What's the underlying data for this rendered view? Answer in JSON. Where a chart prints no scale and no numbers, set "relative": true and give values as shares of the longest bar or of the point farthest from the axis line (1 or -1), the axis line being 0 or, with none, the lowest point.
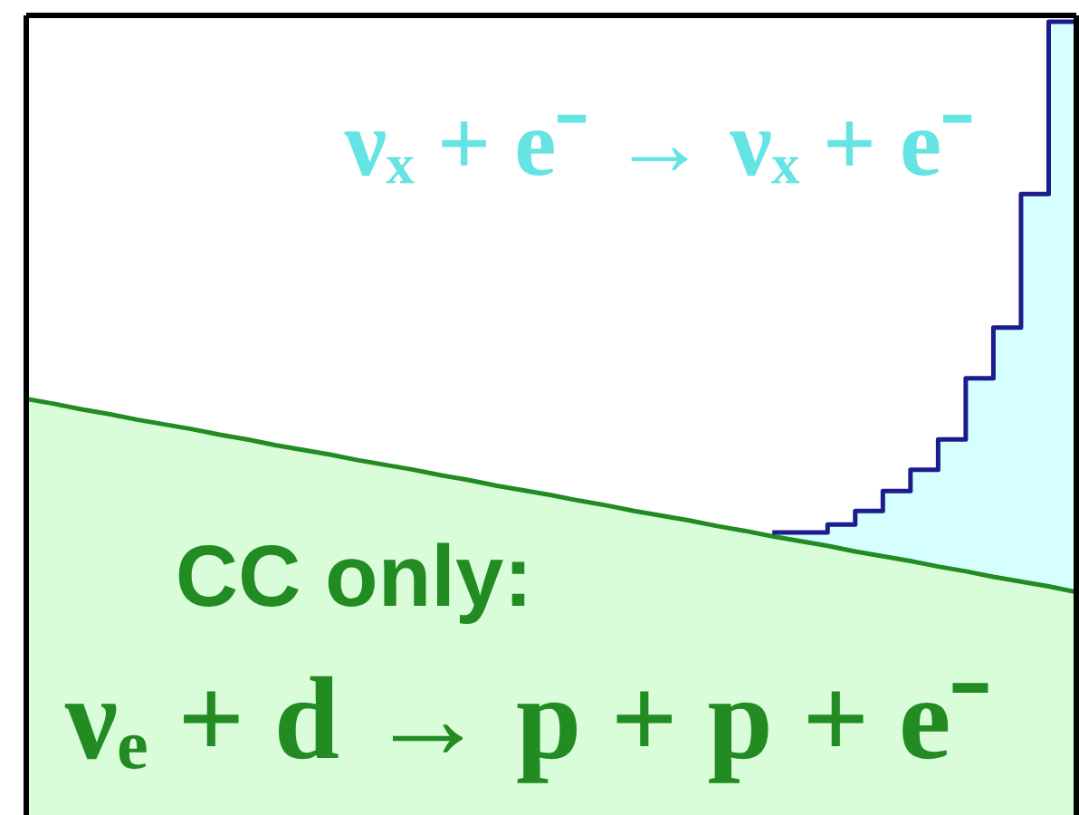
{
  "chart_data": {
    "type": "area",
    "relative": true,
    "annotations": [
      "νₓ + e⁻ → νₓ + e⁻",
      "CC only:",
      "νₑ + d → p + p + e⁻"
    ],
    "categories": [
      null,
      null,
      null,
      null,
      null,
      null,
      null,
      null,
      null,
      null,
      null,
      null,
      null,
      null,
      null,
      null,
      null,
      null,
      null,
      null,
      null,
      null,
      null,
      null,
      null,
      null,
      null,
      null,
      null,
      null,
      null,
      null,
      null,
      null,
      null,
      null,
      null,
      null,
      null
    ],
    "series": [
      {
        "color": "#228b22",
        "values": [
          0.525,
          0.519,
          0.512,
          0.506,
          0.499,
          0.493,
          0.487,
          0.48,
          0.474,
          0.467,
          0.461,
          0.455,
          0.448,
          0.442,
          0.436,
          0.429,
          0.423,
          0.416,
          0.41,
          0.404,
          0.397,
          0.391,
          0.384,
          0.378,
          0.372,
          0.365,
          0.359,
          0.352,
          0.346,
          0.34,
          0.333,
          0.327,
          0.321,
          0.314,
          0.308,
          0.301,
          0.295,
          0.289,
          0.282
        ]
      },
      {
        "type": "step",
        "color": "#1c1c8c",
        "values": [
          null,
          null,
          null,
          null,
          null,
          null,
          null,
          null,
          null,
          null,
          null,
          null,
          null,
          null,
          null,
          null,
          null,
          null,
          null,
          null,
          null,
          null,
          null,
          null,
          null,
          null,
          null,
          0.357,
          0.357,
          0.357,
          0.367,
          0.384,
          0.409,
          0.436,
          0.474,
          0.551,
          0.615,
          0.783,
          1.0
        ],
        "lower": [
          null,
          null,
          null,
          null,
          null,
          null,
          null,
          null,
          null,
          null,
          null,
          null,
          null,
          null,
          null,
          null,
          null,
          null,
          null,
          null,
          null,
          null,
          null,
          null,
          null,
          null,
          null,
          0.352,
          0.346,
          0.34,
          0.333,
          0.327,
          0.321,
          0.314,
          0.308,
          0.301,
          0.295,
          0.289,
          0.282
        ],
        "upper": [
          null,
          null,
          null,
          null,
          null,
          null,
          null,
          null,
          null,
          null,
          null,
          null,
          null,
          null,
          null,
          null,
          null,
          null,
          null,
          null,
          null,
          null,
          null,
          null,
          null,
          null,
          null,
          0.357,
          0.357,
          0.357,
          0.367,
          0.384,
          0.409,
          0.436,
          0.474,
          0.551,
          0.615,
          0.783,
          1.0
        ]
      }
    ]
  }
}
